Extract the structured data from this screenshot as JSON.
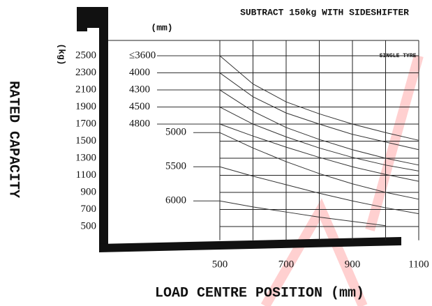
{
  "chart_data": {
    "type": "line",
    "title": "SUBTRACT 150kg WITH SIDESHIFTER",
    "annotation": "SINGLE TYRE",
    "x_unit": "(mm)",
    "y_unit": "(kg)",
    "ylabel": "RATED CAPACITY",
    "xlabel": "LOAD CENTRE POSITION (mm)",
    "x": [
      500,
      600,
      700,
      800,
      900,
      1000,
      1100
    ],
    "xlim": [
      500,
      1100
    ],
    "xticks": [
      500,
      700,
      900,
      1100
    ],
    "xminor": [
      600,
      800,
      1000
    ],
    "ylim": [
      340,
      2680
    ],
    "yticks": [
      500,
      700,
      900,
      1100,
      1300,
      1500,
      1700,
      1900,
      2100,
      2300,
      2500
    ],
    "grid": true,
    "series": [
      {
        "name": "≤3600",
        "color": "#333333",
        "values": [
          2500,
          2170,
          1960,
          1820,
          1700,
          1600,
          1510
        ]
      },
      {
        "name": "4000",
        "color": "#333333",
        "values": [
          2300,
          2020,
          1830,
          1700,
          1580,
          1490,
          1400
        ]
      },
      {
        "name": "4300",
        "color": "#333333",
        "values": [
          2100,
          1850,
          1660,
          1520,
          1400,
          1300,
          1220
        ]
      },
      {
        "name": "4500",
        "color": "#333333",
        "values": [
          1900,
          1700,
          1550,
          1420,
          1310,
          1220,
          1150
        ]
      },
      {
        "name": "4800",
        "color": "#333333",
        "values": [
          1700,
          1560,
          1430,
          1310,
          1200,
          1110,
          1030
        ]
      },
      {
        "name": "5000",
        "color": "#333333",
        "values": [
          1600,
          1420,
          1260,
          1120,
          1000,
          900,
          820
        ]
      },
      {
        "name": "5500",
        "color": "#333333",
        "values": [
          1200,
          1090,
          990,
          890,
          800,
          720,
          650
        ]
      },
      {
        "name": "6000",
        "color": "#333333",
        "values": [
          800,
          730,
          670,
          610,
          560,
          510,
          null
        ]
      }
    ]
  }
}
